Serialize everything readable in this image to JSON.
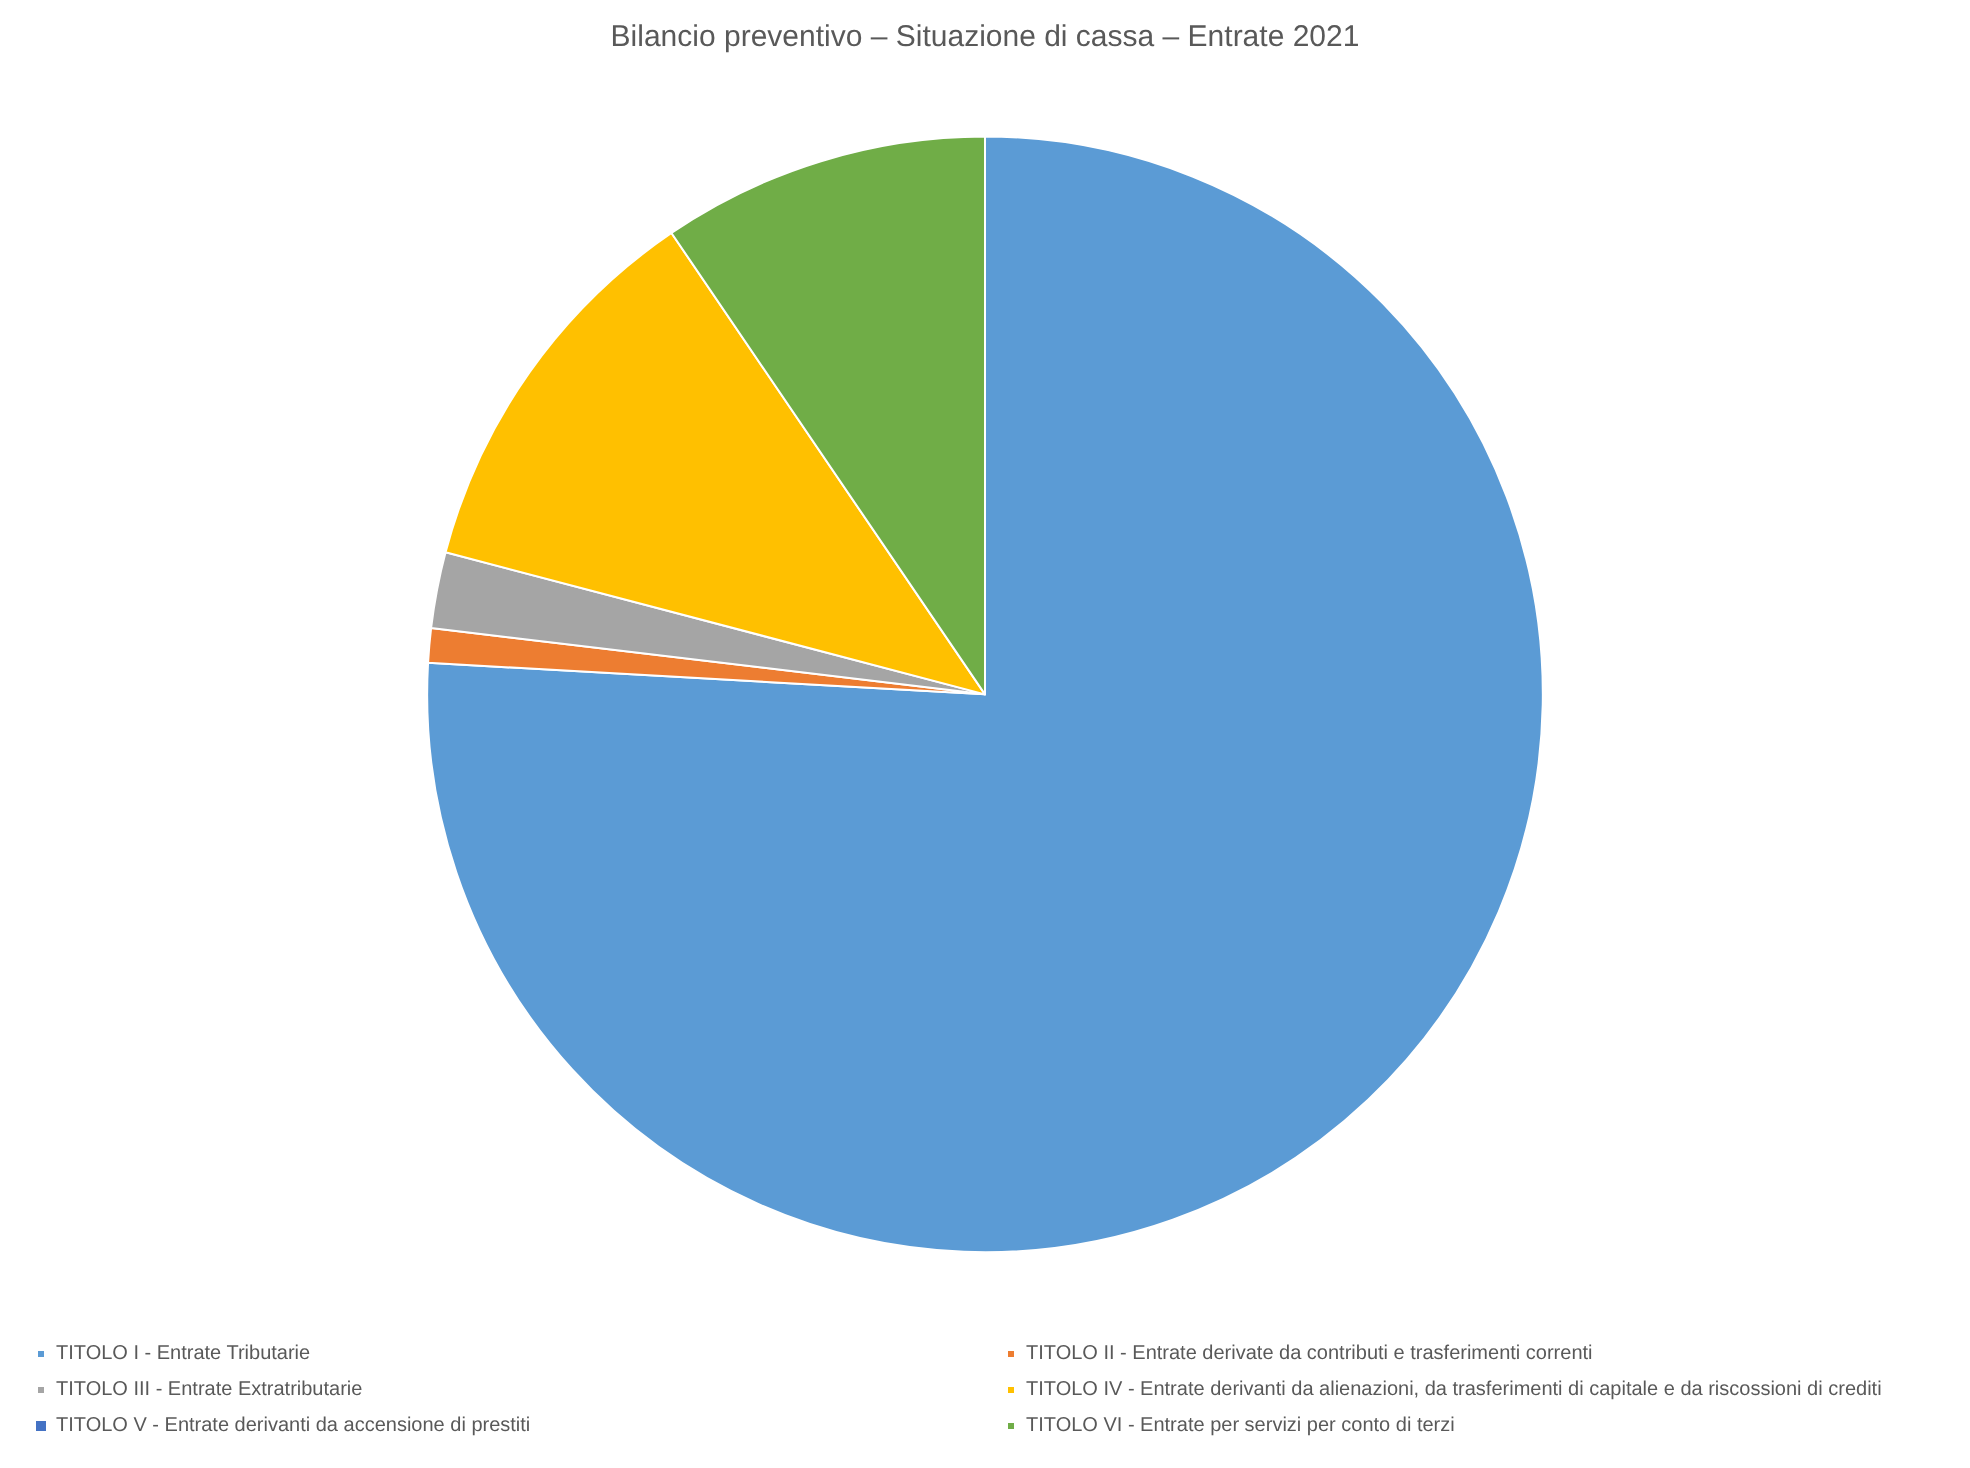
{
  "chart_data": {
    "type": "pie",
    "title": "Bilancio preventivo – Situazione di cassa – Entrate 2021",
    "categories": [
      "TITOLO I - Entrate Tributarie",
      "TITOLO II - Entrate derivate da contributi e trasferimenti correnti",
      "TITOLO III - Entrate Extratributarie",
      "TITOLO IV - Entrate derivanti da alienazioni, da trasferimenti di capitale e da riscossioni di crediti",
      "TITOLO V - Entrate derivanti da accensione di prestiti",
      "TITOLO VI - Entrate per servizi per conto di terzi"
    ],
    "values": [
      75.9,
      1.0,
      2.2,
      11.4,
      0,
      9.5
    ],
    "colors": [
      "#5b9bd5",
      "#ed7d31",
      "#a5a5a5",
      "#ffc000",
      "#4472c4",
      "#70ad47"
    ],
    "legend": "bottom"
  }
}
